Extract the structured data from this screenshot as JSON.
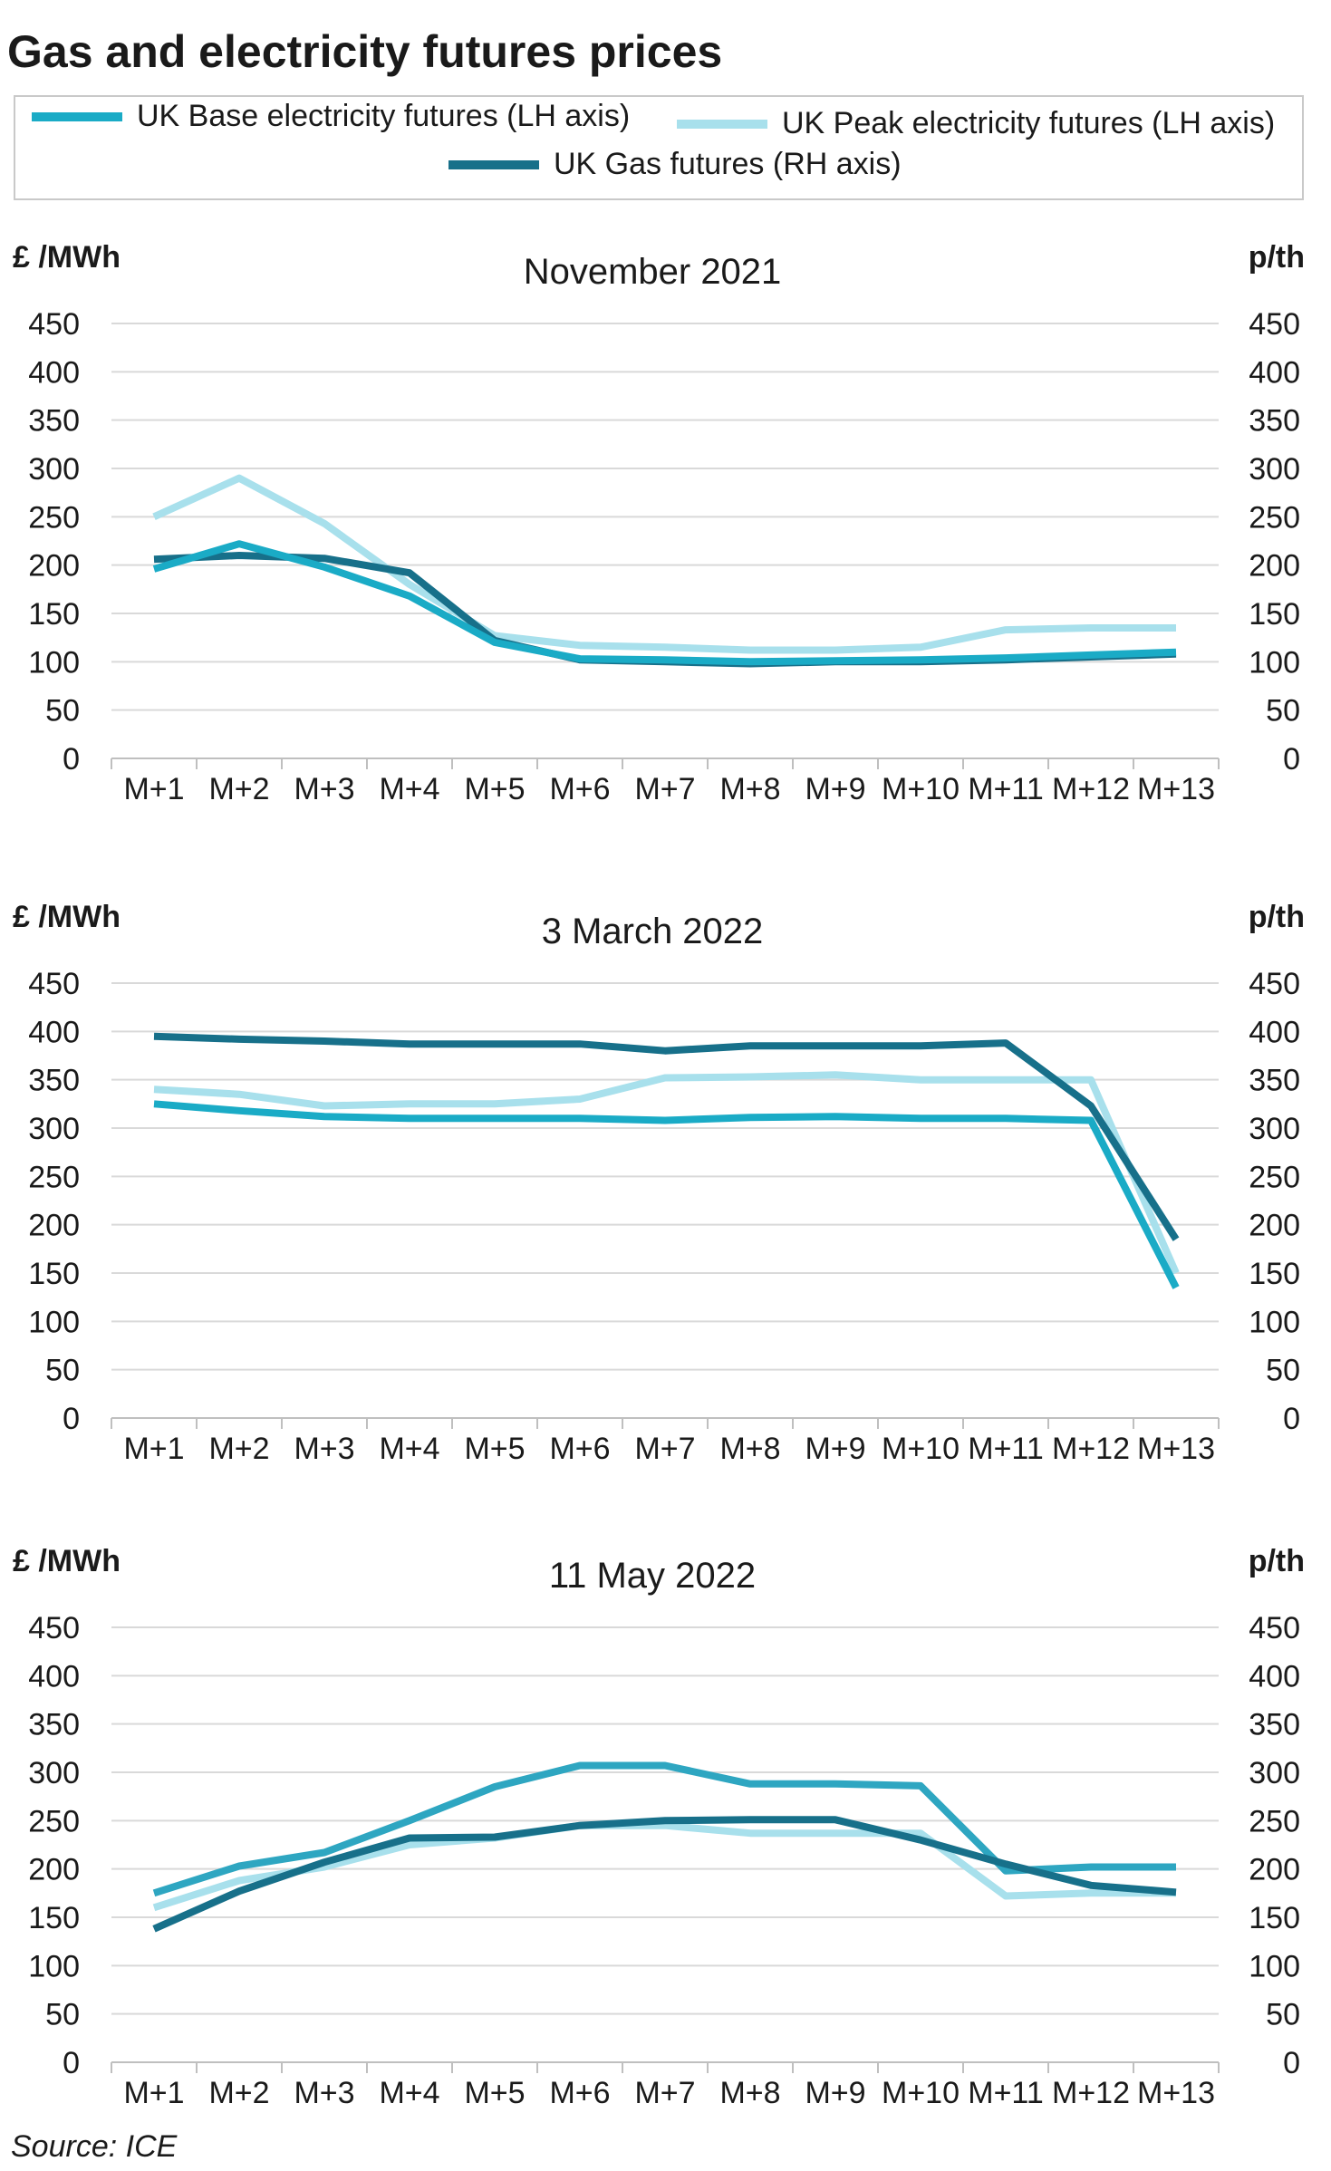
{
  "title": "Gas and electricity futures prices",
  "source": "Source: ICE",
  "legend": [
    {
      "label": "UK Base electricity futures (LH axis)",
      "color": "#1aabc6"
    },
    {
      "label": "UK Peak electricity futures (LH axis)",
      "color": "#a8e0ec"
    },
    {
      "label": "UK Gas futures (RH axis)",
      "color": "#17708a"
    }
  ],
  "chart_data": [
    {
      "type": "line",
      "title": "November 2021",
      "ylabel_left": "£ /MWh",
      "ylabel_right": "p/th",
      "ylim": [
        0,
        450
      ],
      "yticks": [
        "0",
        "50",
        "100",
        "150",
        "200",
        "250",
        "300",
        "350",
        "400",
        "450"
      ],
      "x": [
        "M+1",
        "M+2",
        "M+3",
        "M+4",
        "M+5",
        "M+6",
        "M+7",
        "M+8",
        "M+9",
        "M+10",
        "M+11",
        "M+12",
        "M+13"
      ],
      "series": [
        {
          "name": "UK Peak electricity futures (LH axis)",
          "color": "#a8e0ec",
          "values": [
            250,
            290,
            243,
            180,
            127,
            117,
            115,
            112,
            112,
            115,
            133,
            135,
            135
          ]
        },
        {
          "name": "UK Gas futures (RH axis)",
          "color": "#17708a",
          "values": [
            206,
            210,
            207,
            192,
            122,
            102,
            100,
            98,
            100,
            100,
            102,
            105,
            108
          ]
        },
        {
          "name": "UK Base electricity futures (LH axis)",
          "color": "#1aabc6",
          "values": [
            196,
            222,
            198,
            168,
            120,
            103,
            102,
            100,
            101,
            102,
            104,
            107,
            110
          ]
        }
      ]
    },
    {
      "type": "line",
      "title": "3 March 2022",
      "ylabel_left": "£ /MWh",
      "ylabel_right": "p/th",
      "ylim": [
        0,
        450
      ],
      "yticks": [
        "0",
        "50",
        "100",
        "150",
        "200",
        "250",
        "300",
        "350",
        "400",
        "450"
      ],
      "x": [
        "M+1",
        "M+2",
        "M+3",
        "M+4",
        "M+5",
        "M+6",
        "M+7",
        "M+8",
        "M+9",
        "M+10",
        "M+11",
        "M+12",
        "M+13"
      ],
      "series": [
        {
          "name": "UK Peak electricity futures (LH axis)",
          "color": "#a8e0ec",
          "values": [
            340,
            335,
            323,
            325,
            325,
            330,
            352,
            353,
            355,
            350,
            350,
            350,
            150
          ]
        },
        {
          "name": "UK Base electricity futures (LH axis)",
          "color": "#1aabc6",
          "values": [
            325,
            318,
            312,
            310,
            310,
            310,
            308,
            311,
            312,
            310,
            310,
            308,
            135
          ]
        },
        {
          "name": "UK Gas futures (RH axis)",
          "color": "#17708a",
          "values": [
            395,
            392,
            390,
            387,
            387,
            387,
            380,
            385,
            385,
            385,
            388,
            323,
            185
          ]
        }
      ]
    },
    {
      "type": "line",
      "title": "11 May 2022",
      "ylabel_left": "£ /MWh",
      "ylabel_right": "p/th",
      "ylim": [
        0,
        450
      ],
      "yticks": [
        "0",
        "50",
        "100",
        "150",
        "200",
        "250",
        "300",
        "350",
        "400",
        "450"
      ],
      "x": [
        "M+1",
        "M+2",
        "M+3",
        "M+4",
        "M+5",
        "M+6",
        "M+7",
        "M+8",
        "M+9",
        "M+10",
        "M+11",
        "M+12",
        "M+13"
      ],
      "series": [
        {
          "name": "UK Peak electricity futures (LH axis)",
          "color": "#a8e0ec",
          "values": [
            160,
            188,
            202,
            225,
            232,
            245,
            245,
            237,
            237,
            237,
            172,
            175,
            175
          ]
        },
        {
          "name": "UK Base electricity futures (LH axis)",
          "color": "#2ea6c1",
          "values": [
            175,
            203,
            217,
            250,
            285,
            307,
            307,
            288,
            288,
            286,
            198,
            202,
            202
          ]
        },
        {
          "name": "UK Gas futures (RH axis)",
          "color": "#17708a",
          "values": [
            138,
            177,
            207,
            232,
            233,
            245,
            250,
            251,
            251,
            230,
            205,
            183,
            176
          ]
        }
      ]
    }
  ]
}
